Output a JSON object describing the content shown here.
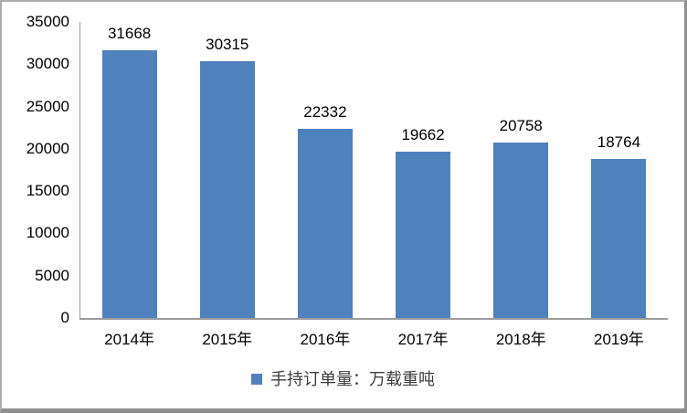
{
  "chart_data": {
    "type": "bar",
    "title": "",
    "xlabel": "",
    "ylabel": "",
    "categories": [
      "2014年",
      "2015年",
      "2016年",
      "2017年",
      "2018年",
      "2019年"
    ],
    "values": [
      31668,
      30315,
      22332,
      19662,
      20758,
      18764
    ],
    "value_labels": [
      "31668",
      "30315",
      "22332",
      "19662",
      "20758",
      "18764"
    ],
    "yticks": [
      0,
      5000,
      10000,
      15000,
      20000,
      25000,
      30000,
      35000
    ],
    "ylim": [
      0,
      35000
    ],
    "grid": false,
    "legend_position": "bottom",
    "legend": [
      {
        "label": "手持订单量：万载重吨",
        "color": "#4F81BD"
      }
    ],
    "colors": {
      "bar": "#4F81BD",
      "axis": "#9b9b9b",
      "frame_border": "#8f8f8f",
      "text": "#000000"
    }
  }
}
